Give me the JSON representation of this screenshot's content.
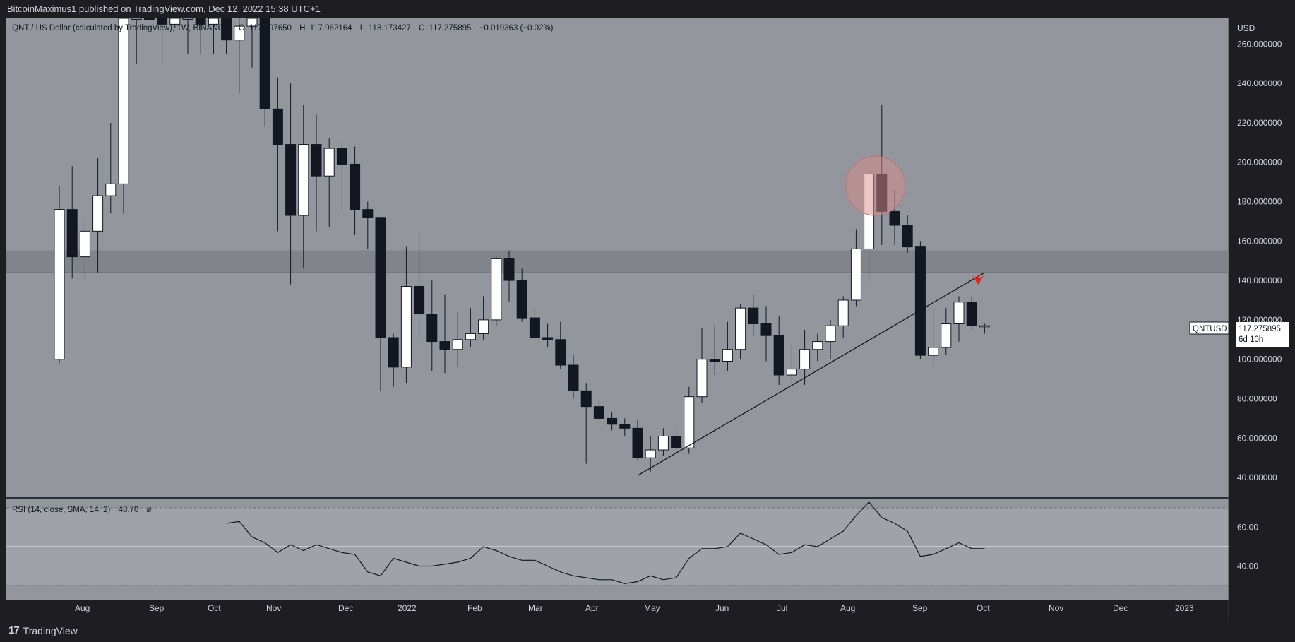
{
  "header": {
    "publish_line": "BitcoinMaximus1 published on TradingView.com, Dec 12, 2022 15:38 UTC+1"
  },
  "legend": {
    "symbol_text": "QNT / US Dollar (calculated by TradingView), 1W, BINANCE",
    "open_label": "O",
    "open_value": "117.297650",
    "high_label": "H",
    "high_value": "117.962164",
    "low_label": "L",
    "low_value": "113.173427",
    "close_label": "C",
    "close_value": "117.275895",
    "change": "−0.019363 (−0.02%)"
  },
  "price_axis": {
    "currency": "USD",
    "ticks": [
      "260.000000",
      "240.000000",
      "220.000000",
      "200.000000",
      "180.000000",
      "160.000000",
      "140.000000",
      "120.000000",
      "100.000000",
      "80.000000",
      "60.000000",
      "40.000000"
    ]
  },
  "price_tag": {
    "symbol": "QNTUSD",
    "price": "117.275895",
    "countdown": "6d 10h"
  },
  "rsi": {
    "label": "RSI (14, close, SMA, 14, 2)",
    "value": "48.70",
    "hidden_icon": "ø",
    "ticks": [
      "60.00",
      "40.00"
    ]
  },
  "time_axis": {
    "labels": [
      "Aug",
      "Sep",
      "Oct",
      "Nov",
      "Dec",
      "2022",
      "Feb",
      "Mar",
      "Apr",
      "May",
      "Jun",
      "Jul",
      "Aug",
      "Sep",
      "Oct",
      "Nov",
      "Dec",
      "2023"
    ]
  },
  "footer": {
    "brand": "TradingView",
    "brand_icon": "tradingview-logo-icon"
  },
  "colors": {
    "background": "#93969d",
    "up_candle": "#ffffff",
    "down_candle": "#131722",
    "resistance_zone": "#7b7e85",
    "highlight_circle": "#d98b8b",
    "arrow": "#e8201a",
    "rsi_background": "#9fa2a8"
  },
  "chart_data": [
    {
      "type": "candlestick",
      "title": "QNT / US Dollar (calculated by TradingView), 1W, BINANCE",
      "ylabel": "USD",
      "ylim": [
        30,
        273
      ],
      "series": [
        {
          "name": "QNTUSD",
          "ohlc": [
            [
              100,
              188,
              98,
              176
            ],
            [
              176,
              198,
              141,
              152
            ],
            [
              152,
              172,
              140,
              165
            ],
            [
              165,
              202,
              144,
              183
            ],
            [
              183,
              220,
              174,
              189
            ],
            [
              189,
              280,
              174,
              280
            ],
            [
              280,
              300,
              250,
              285
            ],
            [
              285,
              300,
              272,
              275
            ],
            [
              275,
              300,
              250,
              270
            ],
            [
              270,
              300,
              268,
              275
            ],
            [
              275,
              300,
              255,
              278
            ],
            [
              278,
              300,
              255,
              270
            ],
            [
              270,
              300,
              255,
              275
            ],
            [
              275,
              300,
              255,
              262
            ],
            [
              262,
              300,
              235,
              269
            ],
            [
              269,
              285,
              248,
              276
            ],
            [
              276,
              285,
              218,
              227
            ],
            [
              227,
              243,
              165,
              209
            ],
            [
              209,
              240,
              138,
              173
            ],
            [
              173,
              229,
              146,
              209
            ],
            [
              209,
              224,
              165,
              193
            ],
            [
              193,
              212,
              167,
              207
            ],
            [
              207,
              210,
              176,
              199
            ],
            [
              199,
              208,
              163,
              176
            ],
            [
              176,
              180,
              156,
              172
            ],
            [
              172,
              172,
              84,
              111
            ],
            [
              111,
              113,
              86,
              96
            ],
            [
              96,
              157,
              88,
              137
            ],
            [
              137,
              165,
              111,
              123
            ],
            [
              123,
              140,
              94,
              109
            ],
            [
              109,
              133,
              93,
              105
            ],
            [
              105,
              124,
              96,
              110
            ],
            [
              110,
              126,
              106,
              113
            ],
            [
              113,
              132,
              110,
              120
            ],
            [
              120,
              152,
              117,
              151
            ],
            [
              151,
              155,
              129,
              140
            ],
            [
              140,
              146,
              119,
              121
            ],
            [
              121,
              126,
              110,
              111
            ],
            [
              111,
              118,
              106,
              110
            ],
            [
              110,
              119,
              95,
              97
            ],
            [
              97,
              102,
              80,
              84
            ],
            [
              84,
              88,
              47,
              76
            ],
            [
              76,
              79,
              69,
              70
            ],
            [
              70,
              73,
              64,
              67
            ],
            [
              67,
              70,
              61,
              65
            ],
            [
              65,
              69,
              49,
              50
            ],
            [
              50,
              61,
              43,
              54
            ],
            [
              54,
              65,
              51,
              61
            ],
            [
              61,
              66,
              52,
              55
            ],
            [
              55,
              86,
              52,
              81
            ],
            [
              81,
              116,
              78,
              100
            ],
            [
              100,
              117,
              92,
              99
            ],
            [
              99,
              119,
              94,
              105
            ],
            [
              105,
              128,
              100,
              126
            ],
            [
              126,
              133,
              112,
              118
            ],
            [
              118,
              127,
              99,
              112
            ],
            [
              112,
              122,
              87,
              92
            ],
            [
              92,
              108,
              87,
              95
            ],
            [
              95,
              115,
              87,
              105
            ],
            [
              105,
              113,
              99,
              109
            ],
            [
              109,
              120,
              100,
              117
            ],
            [
              117,
              132,
              111,
              130
            ],
            [
              130,
              166,
              127,
              156
            ],
            [
              156,
              196,
              139,
              194
            ],
            [
              194,
              229,
              158,
              175
            ],
            [
              175,
              186,
              158,
              168
            ],
            [
              168,
              173,
              154,
              157
            ],
            [
              157,
              160,
              100,
              102
            ],
            [
              102,
              126,
              96,
              106
            ],
            [
              106,
              126,
              102,
              118
            ],
            [
              118,
              132,
              109,
              129
            ],
            [
              129,
              132,
              115,
              117
            ],
            [
              117,
              118,
              113,
              117
            ]
          ]
        }
      ],
      "x_labels": [
        "Aug",
        "Sep",
        "Oct",
        "Nov",
        "Dec",
        "2022",
        "Feb",
        "Mar",
        "Apr",
        "May",
        "Jun",
        "Jul",
        "Aug",
        "Sep",
        "Oct",
        "Nov",
        "Dec",
        "2023"
      ],
      "annotations": {
        "resistance_zone": [
          144,
          155
        ],
        "trendline": [
          [
            45,
            41
          ],
          [
            72,
            144
          ]
        ],
        "highlight_circle": {
          "index": 63.5,
          "price": 188
        },
        "arrow_down": {
          "index": 71.5,
          "price": 140
        }
      }
    },
    {
      "type": "line",
      "title": "RSI (14, close, SMA, 14, 2)",
      "ylim": [
        28,
        78
      ],
      "bands": [
        30,
        50,
        70
      ],
      "series": [
        {
          "name": "RSI",
          "start_index": 13,
          "values": [
            62,
            63,
            55,
            52,
            47,
            51,
            48,
            51,
            49,
            47,
            46,
            37,
            35,
            44,
            42,
            40,
            40,
            41,
            42,
            44,
            50,
            48,
            45,
            43,
            43,
            40,
            37,
            35,
            34,
            33,
            33,
            31,
            32,
            35,
            33,
            34,
            44,
            49,
            49,
            50,
            57,
            54,
            51,
            46,
            47,
            51,
            50,
            54,
            58,
            66,
            73,
            65,
            62,
            58,
            45,
            46,
            49,
            52,
            49,
            49
          ]
        }
      ]
    }
  ]
}
